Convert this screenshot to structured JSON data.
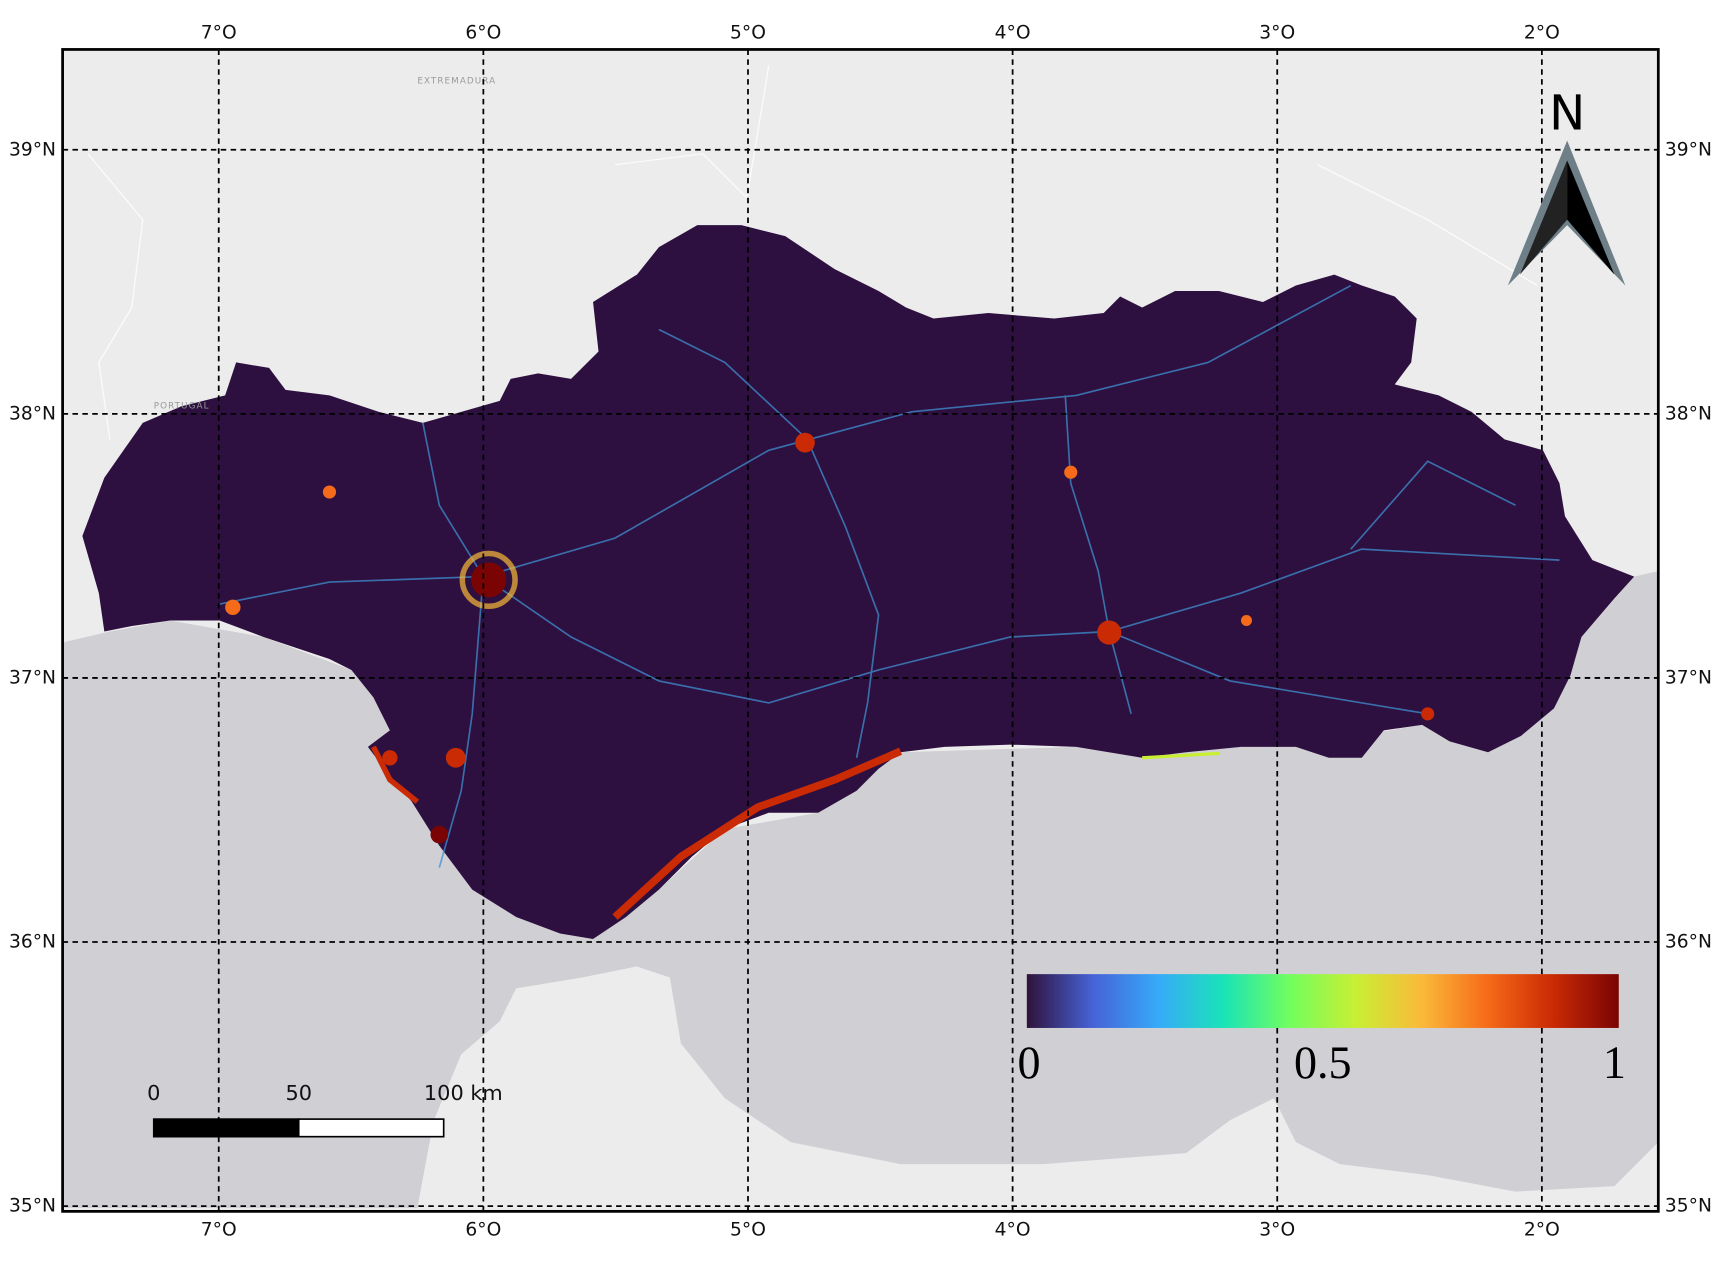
{
  "map": {
    "lon_range": [
      -7.59,
      -1.56
    ],
    "lat_range": [
      34.98,
      39.38
    ],
    "lon_ticks": [
      {
        "value": -7,
        "label": "7°O"
      },
      {
        "value": -6,
        "label": "6°O"
      },
      {
        "value": -5,
        "label": "5°O"
      },
      {
        "value": -4,
        "label": "4°O"
      },
      {
        "value": -3,
        "label": "3°O"
      },
      {
        "value": -2,
        "label": "2°O"
      }
    ],
    "lat_ticks": [
      {
        "value": 39,
        "label": "39°N"
      },
      {
        "value": 38,
        "label": "38°N"
      },
      {
        "value": 37,
        "label": "37°N"
      },
      {
        "value": 36,
        "label": "36°N"
      },
      {
        "value": 35,
        "label": "35°N"
      }
    ],
    "north_label": "N",
    "scale_bar": {
      "ticks": [
        {
          "value": 0,
          "label": "0"
        },
        {
          "value": 50,
          "label": "50"
        },
        {
          "value": 100,
          "label": "100 km"
        }
      ]
    },
    "colorbar": {
      "range": [
        0,
        1
      ],
      "ticks": [
        0,
        0.5,
        1
      ],
      "colors": [
        "#30123b",
        "#4662d7",
        "#36aaf9",
        "#1ae4b6",
        "#72fe5e",
        "#c8ef34",
        "#faba39",
        "#f66b19",
        "#ca2a04",
        "#7a0403"
      ]
    },
    "place_labels": [
      "EXTREMADURA",
      "PORTUGAL"
    ]
  }
}
